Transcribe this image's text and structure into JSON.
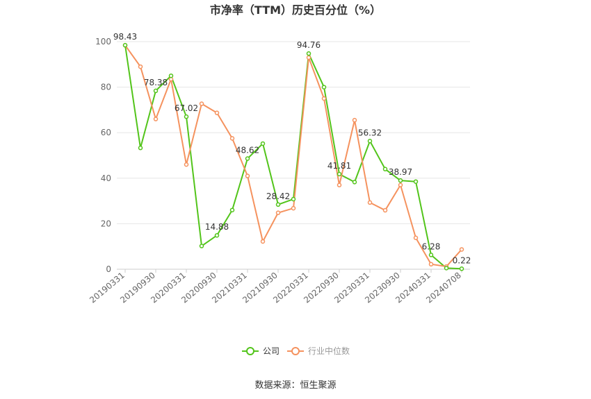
{
  "chart_data": {
    "type": "line",
    "title": "市净率（TTM）历史百分位（%）",
    "x": [
      "20190331",
      "20190630",
      "20190930",
      "20191231",
      "20200331",
      "20200630",
      "20200930",
      "20201231",
      "20210331",
      "20210630",
      "20210930",
      "20211231",
      "20220331",
      "20220630",
      "20220930",
      "20221231",
      "20230331",
      "20230630",
      "20230930",
      "20231231",
      "20240331",
      "20240630",
      "20240708"
    ],
    "x_tick_labels": [
      "20190331",
      "20190930",
      "20200331",
      "20200930",
      "20210331",
      "20210930",
      "20220331",
      "20220930",
      "20230331",
      "20230930",
      "20240331",
      "20240708"
    ],
    "ylim": [
      0,
      100
    ],
    "y_ticks": [
      0,
      20,
      40,
      60,
      80,
      100
    ],
    "grid": true,
    "legend_position": "bottom",
    "series": [
      {
        "name": "公司",
        "color": "#52c41a",
        "values": [
          98.43,
          53.3,
          78.38,
          85.0,
          67.02,
          10.2,
          14.88,
          26.0,
          48.62,
          55.2,
          28.42,
          30.8,
          94.76,
          80.0,
          41.81,
          38.3,
          56.32,
          44.0,
          38.97,
          38.5,
          6.28,
          0.5,
          0.22
        ]
      },
      {
        "name": "行业中位数",
        "color": "#f5925e",
        "values": [
          98.4,
          89.0,
          66.0,
          83.5,
          46.0,
          72.7,
          68.7,
          57.5,
          41.0,
          12.2,
          24.8,
          26.8,
          93.0,
          75.0,
          37.0,
          65.5,
          29.3,
          25.9,
          37.0,
          13.8,
          2.2,
          1.2,
          8.7
        ]
      }
    ],
    "data_labels": [
      {
        "series": 0,
        "index": 0,
        "text": "98.43"
      },
      {
        "series": 0,
        "index": 2,
        "text": "78.38"
      },
      {
        "series": 0,
        "index": 4,
        "text": "67.02"
      },
      {
        "series": 0,
        "index": 6,
        "text": "14.88"
      },
      {
        "series": 0,
        "index": 8,
        "text": "48.62"
      },
      {
        "series": 0,
        "index": 10,
        "text": "28.42"
      },
      {
        "series": 0,
        "index": 12,
        "text": "94.76"
      },
      {
        "series": 0,
        "index": 14,
        "text": "41.81"
      },
      {
        "series": 0,
        "index": 16,
        "text": "56.32"
      },
      {
        "series": 0,
        "index": 18,
        "text": "38.97"
      },
      {
        "series": 0,
        "index": 20,
        "text": "6.28"
      },
      {
        "series": 0,
        "index": 22,
        "text": "0.22"
      }
    ]
  },
  "source_text": "数据来源：恒生聚源"
}
